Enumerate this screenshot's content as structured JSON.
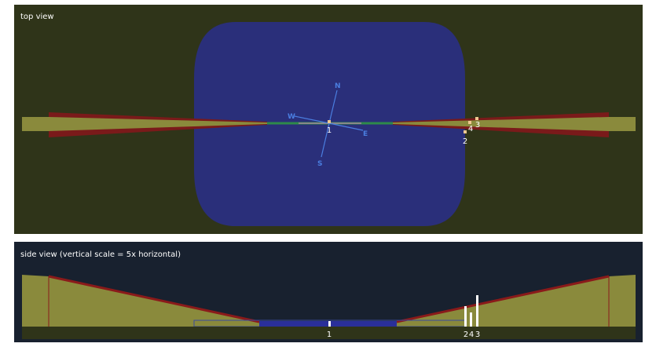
{
  "top_view": {
    "title": "top view",
    "compass": {
      "n": "N",
      "w": "W",
      "e": "E",
      "s": "S"
    },
    "markers": [
      "1",
      "2",
      "3",
      "4"
    ]
  },
  "side_view": {
    "title": "side view (vertical scale = 5x horizontal)",
    "markers": [
      "1",
      "2",
      "4",
      "3"
    ]
  }
}
